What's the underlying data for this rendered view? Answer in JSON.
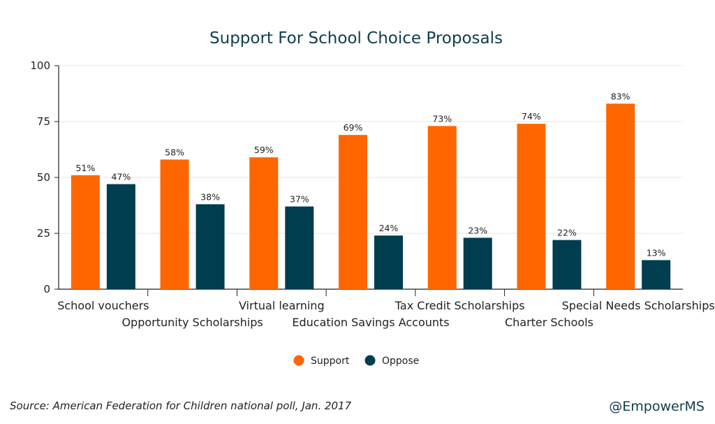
{
  "colors": {
    "support": "#ff6600",
    "oppose": "#003d4f",
    "title": "#0f3d4c",
    "grid": "#e6e6e6",
    "axis": "#222222"
  },
  "footer": {
    "source": "Source: American Federation for Children national poll, Jan. 2017",
    "handle": "@EmpowerMS"
  },
  "chart_data": {
    "type": "bar",
    "title": "Support For School Choice Proposals",
    "xlabel": "",
    "ylabel": "",
    "ylim": [
      0,
      100
    ],
    "yticks": [
      0,
      25,
      50,
      75,
      100
    ],
    "grid": true,
    "legend_position": "bottom-center",
    "categories": [
      "School vouchers",
      "Opportunity Scholarships",
      "Virtual learning",
      "Education Savings Accounts",
      "Tax Credit Scholarships",
      "Charter Schools",
      "Special Needs Scholarships"
    ],
    "series": [
      {
        "name": "Support",
        "values": [
          51,
          58,
          59,
          69,
          73,
          74,
          83
        ],
        "labels": [
          "51%",
          "58%",
          "59%",
          "69%",
          "73%",
          "74%",
          "83%"
        ]
      },
      {
        "name": "Oppose",
        "values": [
          47,
          38,
          37,
          24,
          23,
          22,
          13
        ],
        "labels": [
          "47%",
          "38%",
          "37%",
          "24%",
          "23%",
          "22%",
          "13%"
        ]
      }
    ]
  }
}
